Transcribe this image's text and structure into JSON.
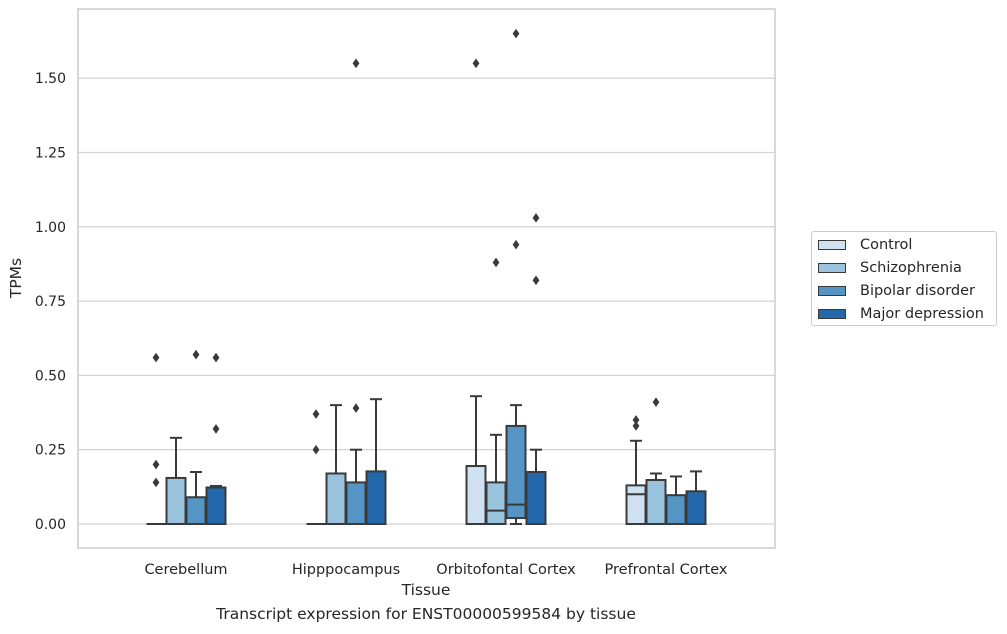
{
  "chart_data": {
    "type": "box",
    "title": "",
    "xlabel": "Tissue",
    "ylabel": "TPMs",
    "caption": "Transcript expression for ENST00000599584 by tissue",
    "ylim": [
      -0.08,
      1.73
    ],
    "yticks": [
      0.0,
      0.25,
      0.5,
      0.75,
      1.0,
      1.25,
      1.5
    ],
    "ytick_labels": [
      "0.00",
      "0.25",
      "0.50",
      "0.75",
      "1.00",
      "1.25",
      "1.50"
    ],
    "grid": true,
    "legend_position": "right",
    "categories": [
      "Cerebellum",
      "Hipppocampus",
      "Orbitofontal Cortex",
      "Prefrontal Cortex"
    ],
    "series": [
      {
        "name": "Control",
        "color": "#d0e2f2",
        "boxes": [
          {
            "q1": 0.0,
            "median": 0.0,
            "q3": 0.0,
            "whisker_low": 0.0,
            "whisker_high": 0.0,
            "outliers": [
              0.14,
              0.2,
              0.56
            ]
          },
          {
            "q1": 0.0,
            "median": 0.0,
            "q3": 0.0,
            "whisker_low": 0.0,
            "whisker_high": 0.0,
            "outliers": [
              0.25,
              0.37
            ]
          },
          {
            "q1": 0.0,
            "median": 0.0,
            "q3": 0.195,
            "whisker_low": 0.0,
            "whisker_high": 0.43,
            "outliers": [
              1.55
            ]
          },
          {
            "q1": 0.0,
            "median": 0.1,
            "q3": 0.13,
            "whisker_low": 0.0,
            "whisker_high": 0.28,
            "outliers": [
              0.33,
              0.35
            ]
          }
        ]
      },
      {
        "name": "Schizophrenia",
        "color": "#9ac3de",
        "boxes": [
          {
            "q1": 0.0,
            "median": 0.0,
            "q3": 0.155,
            "whisker_low": 0.0,
            "whisker_high": 0.29,
            "outliers": []
          },
          {
            "q1": 0.0,
            "median": 0.0,
            "q3": 0.17,
            "whisker_low": 0.0,
            "whisker_high": 0.4,
            "outliers": []
          },
          {
            "q1": 0.0,
            "median": 0.045,
            "q3": 0.14,
            "whisker_low": 0.0,
            "whisker_high": 0.3,
            "outliers": [
              0.88
            ]
          },
          {
            "q1": 0.0,
            "median": 0.0,
            "q3": 0.148,
            "whisker_low": 0.0,
            "whisker_high": 0.17,
            "outliers": [
              0.41
            ]
          }
        ]
      },
      {
        "name": "Bipolar disorder",
        "color": "#5595c3",
        "boxes": [
          {
            "q1": 0.0,
            "median": 0.0,
            "q3": 0.09,
            "whisker_low": 0.0,
            "whisker_high": 0.175,
            "outliers": [
              0.57
            ]
          },
          {
            "q1": 0.0,
            "median": 0.0,
            "q3": 0.14,
            "whisker_low": 0.0,
            "whisker_high": 0.25,
            "outliers": [
              0.39,
              1.55
            ]
          },
          {
            "q1": 0.02,
            "median": 0.065,
            "q3": 0.33,
            "whisker_low": 0.0,
            "whisker_high": 0.4,
            "outliers": [
              0.94,
              1.65
            ]
          },
          {
            "q1": 0.0,
            "median": 0.0,
            "q3": 0.097,
            "whisker_low": 0.0,
            "whisker_high": 0.16,
            "outliers": []
          }
        ]
      },
      {
        "name": "Major depression",
        "color": "#2268ab",
        "boxes": [
          {
            "q1": 0.0,
            "median": 0.0,
            "q3": 0.123,
            "whisker_low": 0.0,
            "whisker_high": 0.128,
            "outliers": [
              0.32,
              0.56
            ]
          },
          {
            "q1": 0.0,
            "median": 0.0,
            "q3": 0.177,
            "whisker_low": 0.0,
            "whisker_high": 0.42,
            "outliers": []
          },
          {
            "q1": 0.0,
            "median": 0.0,
            "q3": 0.175,
            "whisker_low": 0.0,
            "whisker_high": 0.25,
            "outliers": [
              0.82,
              1.03
            ]
          },
          {
            "q1": 0.0,
            "median": 0.0,
            "q3": 0.11,
            "whisker_low": 0.0,
            "whisker_high": 0.177,
            "outliers": []
          }
        ]
      }
    ]
  }
}
